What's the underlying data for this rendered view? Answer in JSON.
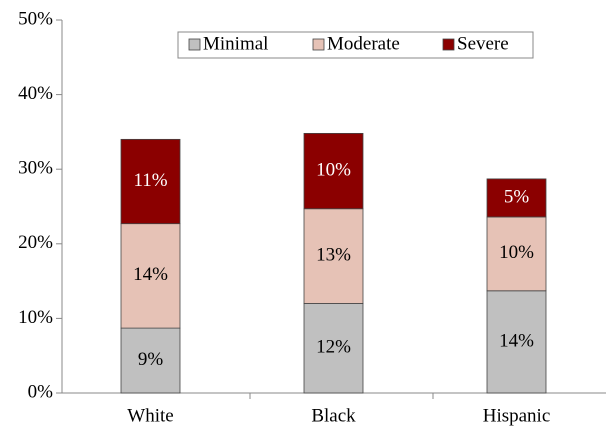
{
  "chart_data": {
    "type": "stacked_bar",
    "categories": [
      "White",
      "Black",
      "Hispanic"
    ],
    "series": [
      {
        "name": "Minimal",
        "color": "#c0c0c0",
        "values": [
          8.7,
          12,
          13.7
        ],
        "value_labels": [
          "9%",
          "12%",
          "14%"
        ]
      },
      {
        "name": "Moderate",
        "color": "#e6c2b6",
        "values": [
          14,
          12.7,
          9.9
        ],
        "value_labels": [
          "14%",
          "13%",
          "10%"
        ]
      },
      {
        "name": "Severe",
        "color": "#8b0000",
        "values": [
          11.3,
          10.1,
          5.1
        ],
        "value_labels": [
          "11%",
          "10%",
          "5%"
        ]
      }
    ],
    "ylim": [
      0,
      50
    ],
    "yticks": [
      {
        "value": 0,
        "label": "0%"
      },
      {
        "value": 10,
        "label": "10%"
      },
      {
        "value": 20,
        "label": "20%"
      },
      {
        "value": 30,
        "label": "30%"
      },
      {
        "value": 40,
        "label": "40%"
      },
      {
        "value": 50,
        "label": "50%"
      }
    ],
    "legend": "top"
  }
}
